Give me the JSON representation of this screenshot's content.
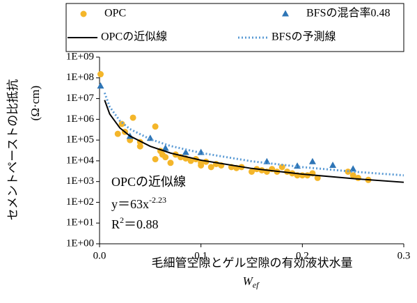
{
  "chart_data": {
    "type": "scatter",
    "y_label_lines": [
      "セメントペーストの比抵抗",
      "(Ω·cm)"
    ],
    "x_label": "毛細管空隙とゲル空隙の有効液状水量",
    "x_label_symbol": {
      "text": "W",
      "subscript": "ef"
    },
    "xlim": [
      0,
      0.3
    ],
    "xticks": [
      {
        "value": 0,
        "label": "0.0"
      },
      0.1,
      0.2,
      0.3
    ],
    "ylim": [
      1,
      1000000000
    ],
    "ylog": true,
    "yticks": [
      {
        "value": 1,
        "label": "1E+00"
      },
      {
        "value": 10,
        "label": "1E+01"
      },
      {
        "value": 100,
        "label": "1E+02"
      },
      {
        "value": 1000,
        "label": "1E+03"
      },
      {
        "value": 10000,
        "label": "1E+04"
      },
      {
        "value": 100000,
        "label": "1E+05"
      },
      {
        "value": 1000000,
        "label": "1E+06"
      },
      {
        "value": 10000000,
        "label": "1E+07"
      },
      {
        "value": 100000000,
        "label": "1E+08"
      },
      {
        "value": 1000000000,
        "label": "1E+09"
      }
    ],
    "grid": false,
    "legend": "top",
    "annotations": [
      {
        "text": "OPCの近似線"
      },
      {
        "text": "y＝63x",
        "superscript": "-2.23"
      },
      {
        "text": "R",
        "superscript": "2",
        "text_after": "＝0.88"
      }
    ],
    "series": [
      {
        "name": "OPC",
        "color": "#f4b62a",
        "marker": "circle",
        "x": [
          0.001,
          0.018,
          0.022,
          0.025,
          0.03,
          0.033,
          0.04,
          0.04,
          0.055,
          0.055,
          0.06,
          0.062,
          0.065,
          0.07,
          0.075,
          0.08,
          0.085,
          0.09,
          0.095,
          0.1,
          0.1,
          0.105,
          0.11,
          0.115,
          0.12,
          0.13,
          0.135,
          0.14,
          0.15,
          0.155,
          0.16,
          0.165,
          0.17,
          0.175,
          0.18,
          0.185,
          0.19,
          0.195,
          0.2,
          0.205,
          0.21,
          0.215,
          0.245,
          0.25,
          0.255,
          0.265
        ],
        "values": [
          150000000,
          200000,
          600000,
          250000,
          100000,
          1200000,
          50000,
          80000,
          450000,
          12000,
          30000,
          20000,
          15000,
          8000,
          20000,
          15000,
          13000,
          10000,
          12000,
          8000,
          6000,
          9000,
          5000,
          7000,
          6000,
          5000,
          4500,
          5000,
          3000,
          4000,
          3500,
          3000,
          4000,
          3000,
          5000,
          3000,
          2500,
          2000,
          2000,
          2000,
          2500,
          1500,
          3000,
          2000,
          1500,
          1200
        ]
      },
      {
        "name": "BFSの混合率0.48",
        "color": "#2e75b6",
        "marker": "triangle",
        "x": [
          0.001,
          0.03,
          0.05,
          0.065,
          0.085,
          0.1,
          0.165,
          0.195,
          0.21,
          0.23,
          0.25
        ],
        "values": [
          40000000,
          150000,
          120000,
          40000,
          25000,
          25000,
          9000,
          5500,
          9000,
          6000,
          4000
        ]
      },
      {
        "name": "OPCの近似線",
        "color": "#000000",
        "line": "solid",
        "x": [
          0.005,
          0.01,
          0.02,
          0.03,
          0.05,
          0.07,
          0.1,
          0.15,
          0.2,
          0.25,
          0.3
        ],
        "values": [
          8500000,
          1810000,
          387000,
          157000,
          50000,
          23700,
          10700,
          4300,
          2280,
          1390,
          924
        ]
      },
      {
        "name": "BFSの予測線",
        "color": "#5b9bd5",
        "line": "dotted",
        "x": [
          0.005,
          0.01,
          0.02,
          0.03,
          0.05,
          0.07,
          0.1,
          0.15,
          0.2,
          0.25,
          0.3
        ],
        "values": [
          19000000,
          4000000,
          850000,
          340000,
          110000,
          52000,
          24000,
          9500,
          5000,
          3000,
          2000
        ]
      }
    ]
  }
}
